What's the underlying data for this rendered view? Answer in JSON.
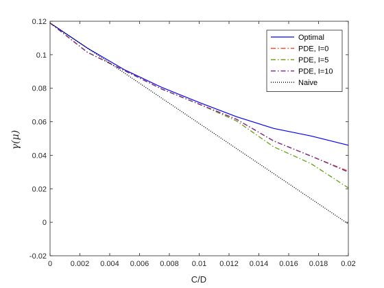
{
  "chart_data": {
    "type": "line",
    "title": "",
    "xlabel": "C/D",
    "ylabel": "γ(μ)",
    "xlim": [
      0,
      0.02
    ],
    "ylim": [
      -0.02,
      0.12
    ],
    "grid": false,
    "legend_position": "top-right",
    "x_ticks": [
      {
        "value": 0,
        "label": "0"
      },
      {
        "value": 0.002,
        "label": "0.002"
      },
      {
        "value": 0.004,
        "label": "0.004"
      },
      {
        "value": 0.006,
        "label": "0.006"
      },
      {
        "value": 0.008,
        "label": "0.008"
      },
      {
        "value": 0.01,
        "label": "0.01"
      },
      {
        "value": 0.012,
        "label": "0.012"
      },
      {
        "value": 0.014,
        "label": "0.014"
      },
      {
        "value": 0.016,
        "label": "0.016"
      },
      {
        "value": 0.018,
        "label": "0.018"
      },
      {
        "value": 0.02,
        "label": "0.02"
      }
    ],
    "y_ticks": [
      {
        "value": -0.02,
        "label": "-0.02"
      },
      {
        "value": 0,
        "label": "0"
      },
      {
        "value": 0.02,
        "label": "0.02"
      },
      {
        "value": 0.04,
        "label": "0.04"
      },
      {
        "value": 0.06,
        "label": "0.06"
      },
      {
        "value": 0.08,
        "label": "0.08"
      },
      {
        "value": 0.1,
        "label": "0.1"
      },
      {
        "value": 0.12,
        "label": "0.12"
      }
    ],
    "series": [
      {
        "name": "Optimal",
        "color": "#0000ff",
        "style": "solid",
        "x": [
          0,
          0.0025,
          0.005,
          0.0075,
          0.01,
          0.0125,
          0.015,
          0.0175,
          0.02
        ],
        "y": [
          0.119,
          0.104,
          0.091,
          0.0805,
          0.0715,
          0.063,
          0.056,
          0.0515,
          0.046
        ]
      },
      {
        "name": "PDE, I=0",
        "color": "#e3502a",
        "style": "dashdot",
        "x": [
          0,
          0.0025,
          0.005,
          0.0075,
          0.01,
          0.0125,
          0.015,
          0.0175,
          0.02
        ],
        "y": [
          0.119,
          0.1015,
          0.0905,
          0.0795,
          0.0705,
          0.0615,
          0.0485,
          0.0395,
          0.0305
        ]
      },
      {
        "name": "PDE, I=5",
        "color": "#6aa61e",
        "style": "dashdot",
        "x": [
          0,
          0.0025,
          0.005,
          0.0075,
          0.01,
          0.0125,
          0.015,
          0.0175,
          0.02
        ],
        "y": [
          0.119,
          0.1015,
          0.0905,
          0.0795,
          0.0705,
          0.0605,
          0.045,
          0.035,
          0.0205
        ]
      },
      {
        "name": "PDE, I=10",
        "color": "#7e2f8e",
        "style": "dashdot",
        "x": [
          0,
          0.0025,
          0.005,
          0.0075,
          0.01,
          0.0125,
          0.015,
          0.0175,
          0.02
        ],
        "y": [
          0.119,
          0.1015,
          0.0905,
          0.0795,
          0.0705,
          0.0615,
          0.0485,
          0.0395,
          0.03
        ]
      },
      {
        "name": "Naive",
        "color": "#000000",
        "style": "dotted",
        "x": [
          0,
          0.02
        ],
        "y": [
          0.119,
          -0.001
        ]
      }
    ]
  }
}
